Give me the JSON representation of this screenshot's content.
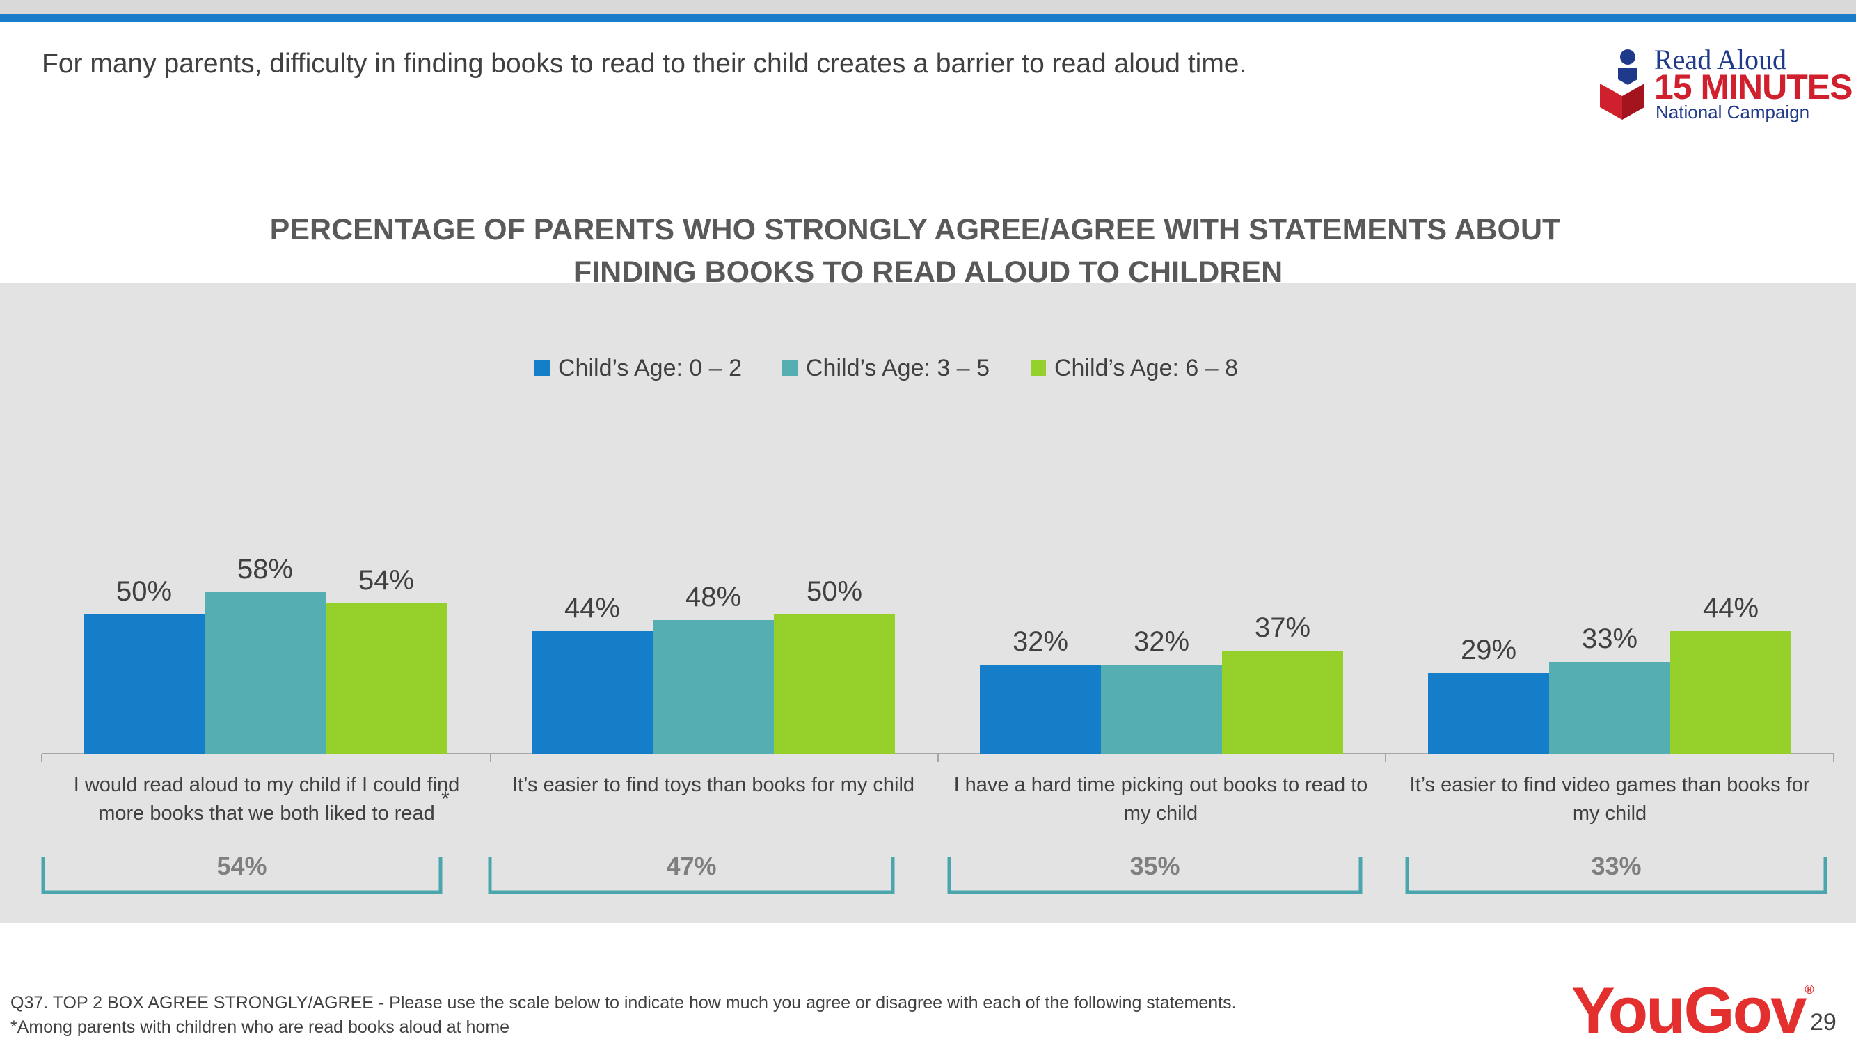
{
  "headline": "For many parents, difficulty in finding books to read to their child creates a barrier to read aloud time.",
  "logo": {
    "line1": "Read Aloud",
    "line2": "15 MINUTES",
    "line3": "National Campaign"
  },
  "colors": {
    "age_0_2": "#147ec9",
    "age_3_5": "#55aeb1",
    "age_6_8": "#95d12a",
    "bracket": "#4aa5ad",
    "top_rule": "#1a7dcb",
    "panel": "#e3e3e3"
  },
  "chart_data": {
    "type": "bar",
    "title_line1": "PERCENTAGE OF PARENTS WHO STRONGLY AGREE/AGREE WITH STATEMENTS ABOUT",
    "title_line2": "FINDING BOOKS TO READ ALOUD TO CHILDREN",
    "categories": [
      [
        "I would read aloud to my child if I could find",
        "more books that we both liked to read"
      ],
      [
        "It’s easier to find toys than books for my child"
      ],
      [
        "I have a hard time picking out books to read to",
        "my child"
      ],
      [
        "It’s easier to find video games than books for",
        "my child"
      ]
    ],
    "series": [
      {
        "name": "Child’s Age: 0 – 2",
        "values": [
          50,
          44,
          32,
          29
        ],
        "labels": [
          "50%",
          "44%",
          "32%",
          "29%"
        ]
      },
      {
        "name": "Child’s Age: 3 – 5",
        "values": [
          58,
          48,
          32,
          33
        ],
        "labels": [
          "58%",
          "48%",
          "32%",
          "33%"
        ]
      },
      {
        "name": "Child’s Age: 6 – 8",
        "values": [
          54,
          50,
          37,
          44
        ],
        "labels": [
          "54%",
          "50%",
          "37%",
          "44%"
        ]
      }
    ],
    "totals": [
      "54%",
      "47%",
      "35%",
      "33%"
    ],
    "asterisk": "*",
    "legend_position": "top-center",
    "grid": false,
    "ylim": [
      0,
      100
    ]
  },
  "footnotes": {
    "question": "Q37. TOP 2 BOX AGREE STRONGLY/AGREE - Please use the scale below to indicate how much you agree or disagree with each of the following statements.",
    "base": "*Among parents with children who are read books aloud at home"
  },
  "brand": "YouGov",
  "brand_mark": "®",
  "page_number": "29"
}
